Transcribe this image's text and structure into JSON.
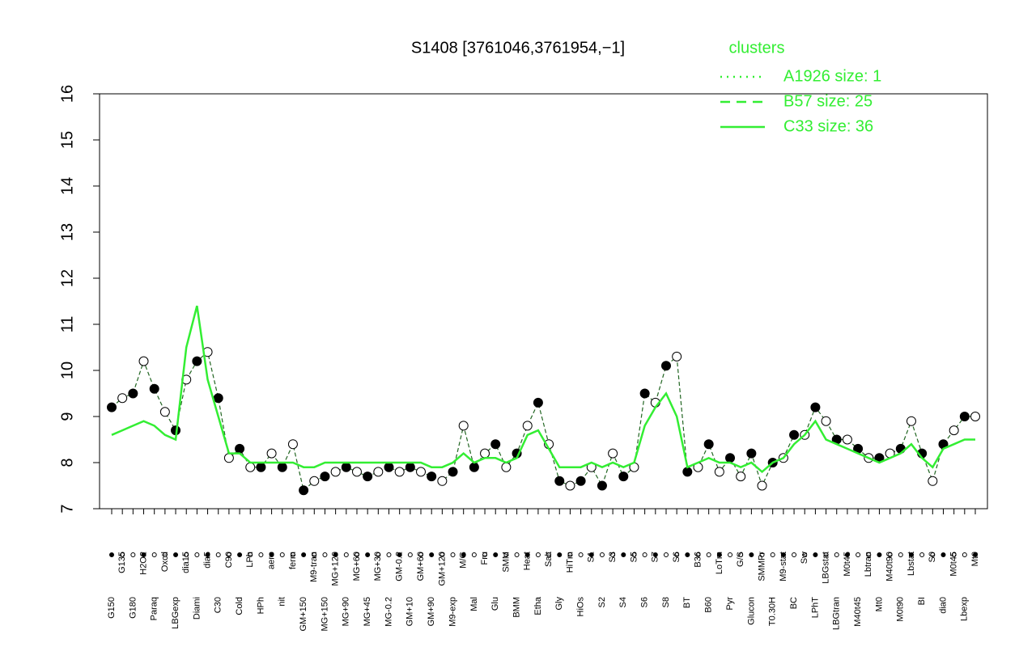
{
  "chart_data": {
    "type": "line",
    "title": "S1408 [3761046,3761954,−1]",
    "legend_title": "clusters",
    "ylim": [
      7,
      16
    ],
    "yticks": [
      7,
      8,
      9,
      10,
      11,
      12,
      13,
      14,
      15,
      16
    ],
    "categories": [
      "G150",
      "G135",
      "G180",
      "H2O2",
      "Paraq",
      "Oxctl",
      "LBGexp",
      "dia15",
      "Diami",
      "dia5",
      "C30",
      "C90",
      "Cold",
      "LPh",
      "HPh",
      "aero",
      "nit",
      "ferm",
      "GM+150",
      "M9-tran",
      "MG+150",
      "MG+120",
      "MG+90",
      "MG+60",
      "MG+45",
      "MG+30",
      "MG-0.2",
      "GM-0.2",
      "GM+10",
      "GM+60",
      "GM+90",
      "GM+120",
      "M9-exp",
      "M/G",
      "Mal",
      "Fru",
      "Glu",
      "SMM",
      "BMM",
      "Heat",
      "Etha",
      "Salt",
      "Gly",
      "HiTm",
      "HiOs",
      "S1",
      "S2",
      "S3",
      "S4",
      "S5",
      "S6",
      "S7",
      "S8",
      "S6",
      "BT",
      "B36",
      "B60",
      "LoTm",
      "Pyr",
      "G/S",
      "Glucon",
      "SMMPr",
      "T0.30H",
      "M9-stat",
      "BC",
      "Sw",
      "LPhT",
      "LBGstat",
      "LBGtran",
      "M0t45",
      "M40t45",
      "Lbtran",
      "Mt0",
      "M40t90",
      "M0t90",
      "Lbstat",
      "BI",
      "S0",
      "dia0",
      "M0t45",
      "Lbexp",
      "Mt0"
    ],
    "series": [
      {
        "name": "A1926 size: 1",
        "color": "#33ee33",
        "dash": "dotted"
      },
      {
        "name": "B57 size: 25",
        "color": "#33ee33",
        "dash": "dashed",
        "values": [
          9.2,
          9.4,
          9.5,
          10.2,
          9.6,
          9.1,
          8.7,
          9.8,
          10.2,
          10.4,
          9.4,
          8.1,
          8.3,
          7.9,
          7.9,
          8.2,
          7.9,
          8.4,
          7.4,
          7.6,
          7.7,
          7.8,
          7.9,
          7.8,
          7.7,
          7.8,
          7.9,
          7.8,
          7.9,
          7.8,
          7.7,
          7.6,
          7.8,
          8.8,
          7.9,
          8.2,
          8.4,
          7.9,
          8.2,
          8.8,
          9.3,
          8.4,
          7.6,
          7.5,
          7.6,
          7.9,
          7.5,
          8.2,
          7.7,
          7.9,
          9.5,
          9.3,
          10.1,
          10.3,
          7.8,
          7.9,
          8.4,
          7.8,
          8.1,
          7.7,
          8.2,
          7.5,
          8.0,
          8.1,
          8.6,
          8.6,
          9.2,
          8.9,
          8.5,
          8.5,
          8.3,
          8.1,
          8.1,
          8.2,
          8.3,
          8.9,
          8.2,
          7.6,
          8.4,
          8.7,
          9.0,
          9.0
        ]
      },
      {
        "name": "C33 size: 36",
        "color": "#33ee33",
        "dash": "solid",
        "values": [
          8.6,
          8.7,
          8.8,
          8.9,
          8.8,
          8.6,
          8.5,
          10.5,
          11.4,
          9.8,
          9.0,
          8.2,
          8.2,
          8.0,
          8.0,
          8.0,
          8.0,
          8.0,
          7.9,
          7.9,
          8.0,
          8.0,
          8.0,
          8.0,
          8.0,
          8.0,
          8.0,
          8.0,
          8.0,
          8.0,
          7.9,
          7.9,
          8.0,
          8.2,
          8.0,
          8.1,
          8.1,
          8.0,
          8.1,
          8.6,
          8.7,
          8.3,
          7.9,
          7.9,
          7.9,
          8.0,
          7.9,
          8.0,
          7.9,
          8.0,
          8.8,
          9.2,
          9.5,
          9.0,
          7.9,
          8.0,
          8.1,
          8.0,
          8.0,
          7.9,
          8.0,
          7.8,
          8.0,
          8.1,
          8.4,
          8.6,
          8.9,
          8.5,
          8.4,
          8.3,
          8.2,
          8.1,
          8.0,
          8.1,
          8.2,
          8.4,
          8.1,
          7.9,
          8.3,
          8.4,
          8.5,
          8.5
        ]
      }
    ]
  }
}
